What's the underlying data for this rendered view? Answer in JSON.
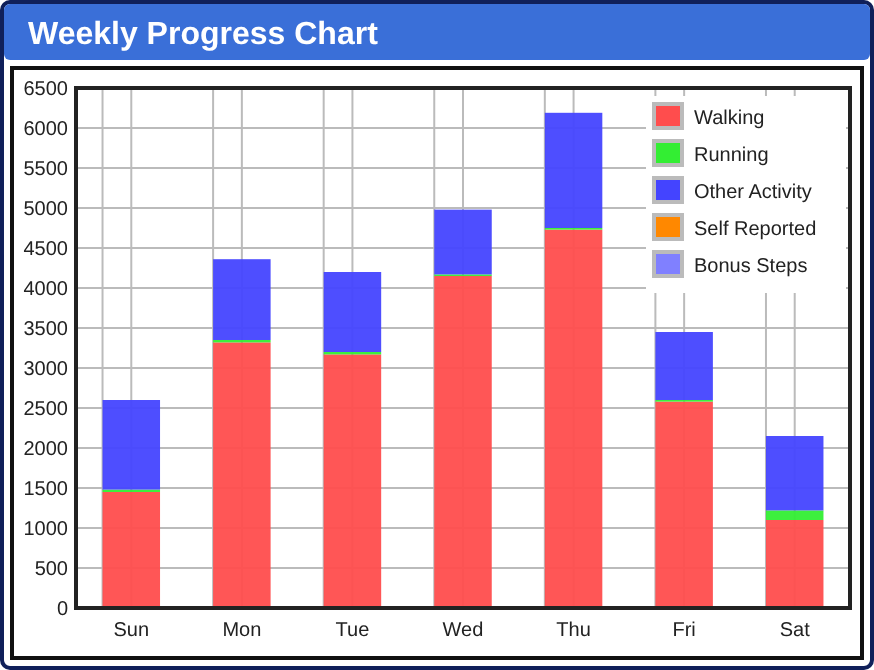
{
  "chart_data": {
    "type": "bar",
    "title": "Weekly Progress Chart",
    "categories": [
      "Sun",
      "Mon",
      "Tue",
      "Wed",
      "Thu",
      "Fri",
      "Sat"
    ],
    "stacked": true,
    "series": [
      {
        "name": "Walking",
        "color": "#ff4d4d",
        "values": [
          1450,
          3320,
          3170,
          4150,
          4730,
          2580,
          1100
        ]
      },
      {
        "name": "Running",
        "color": "#33ee33",
        "values": [
          30,
          30,
          30,
          20,
          20,
          20,
          120
        ]
      },
      {
        "name": "Other Activity",
        "color": "#4444ff",
        "values": [
          1120,
          1010,
          1000,
          810,
          1440,
          850,
          930
        ]
      },
      {
        "name": "Self Reported",
        "color": "#ff8800",
        "values": [
          0,
          0,
          0,
          0,
          0,
          0,
          0
        ]
      },
      {
        "name": "Bonus Steps",
        "color": "#8080ff",
        "values": [
          0,
          0,
          0,
          0,
          0,
          0,
          0
        ]
      }
    ],
    "ylim": [
      0,
      6500
    ],
    "yticks": [
      0,
      500,
      1000,
      1500,
      2000,
      2500,
      3000,
      3500,
      4000,
      4500,
      5000,
      5500,
      6000,
      6500
    ],
    "grid": true,
    "legend": "top right"
  }
}
